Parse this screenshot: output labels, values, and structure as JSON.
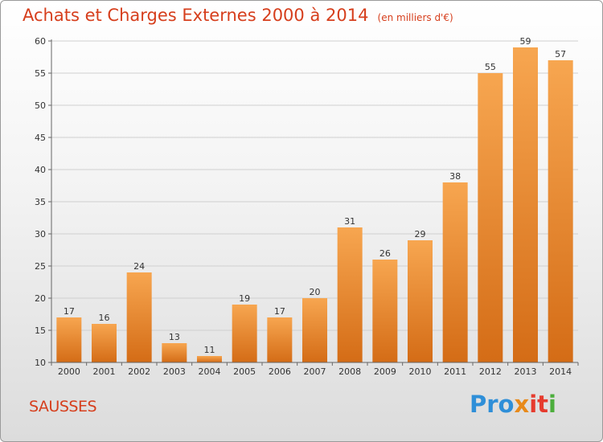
{
  "title": "Achats et Charges Externes 2000 à 2014",
  "subtitle": "(en milliers d'€)",
  "commune": "SAUSSES",
  "logo": {
    "text": "Proxiti",
    "parts": [
      "Pro",
      "x",
      "it",
      "i"
    ]
  },
  "colors": {
    "bar_top": "#f7a650",
    "bar_bottom": "#d46c16",
    "title": "#d63e1c"
  },
  "chart_data": {
    "type": "bar",
    "title": "Achats et Charges Externes 2000 à 2014",
    "subtitle": "(en milliers d'€)",
    "categories": [
      "2000",
      "2001",
      "2002",
      "2003",
      "2004",
      "2005",
      "2006",
      "2007",
      "2008",
      "2009",
      "2010",
      "2011",
      "2012",
      "2013",
      "2014"
    ],
    "values": [
      17,
      16,
      24,
      13,
      11,
      19,
      17,
      20,
      31,
      26,
      29,
      38,
      55,
      59,
      57
    ],
    "ylim": [
      10,
      60
    ],
    "yticks": [
      10,
      15,
      20,
      25,
      30,
      35,
      40,
      45,
      50,
      55,
      60
    ],
    "grid": true
  }
}
